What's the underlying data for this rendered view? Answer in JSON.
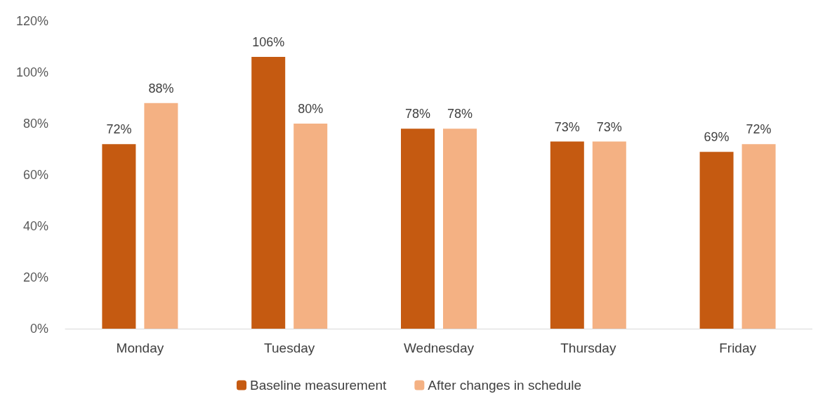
{
  "chart_data": {
    "type": "bar",
    "categories": [
      "Monday",
      "Tuesday",
      "Wednesday",
      "Thursday",
      "Friday"
    ],
    "series": [
      {
        "name": "Baseline measurement",
        "color": "#c55a11",
        "values": [
          72,
          106,
          78,
          73,
          69
        ],
        "value_labels": [
          "72%",
          "106%",
          "78%",
          "73%",
          "69%"
        ]
      },
      {
        "name": "After changes in schedule",
        "color": "#f4b183",
        "values": [
          88,
          80,
          78,
          73,
          72
        ],
        "value_labels": [
          "88%",
          "80%",
          "78%",
          "73%",
          "72%"
        ]
      }
    ],
    "ylim": [
      0,
      120
    ],
    "yticks": [
      {
        "value": 0,
        "label": "0%"
      },
      {
        "value": 20,
        "label": "20%"
      },
      {
        "value": 40,
        "label": "40%"
      },
      {
        "value": 60,
        "label": "60%"
      },
      {
        "value": 80,
        "label": "80%"
      },
      {
        "value": 100,
        "label": "100%"
      },
      {
        "value": 120,
        "label": "120%"
      }
    ],
    "grid": false,
    "legend": "bottom"
  }
}
